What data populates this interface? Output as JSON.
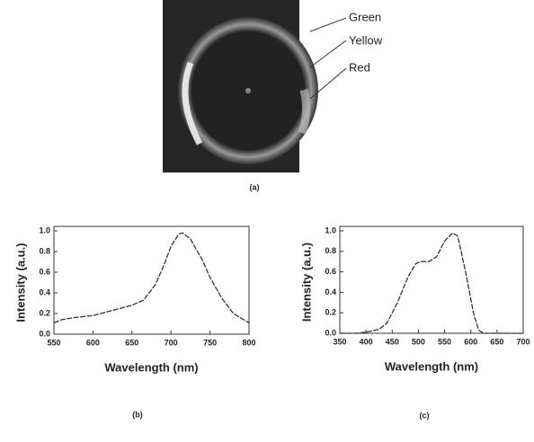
{
  "photo": {
    "labels": [
      "Green",
      "Yellow",
      "Red"
    ],
    "caption": "(a)"
  },
  "chart_data": [
    {
      "type": "line",
      "caption": "(b)",
      "x_label": "Wavelength (nm)",
      "y_label": "Intensity (a.u.)",
      "x": [
        550,
        560,
        575,
        600,
        625,
        650,
        665,
        680,
        690,
        700,
        710,
        715,
        725,
        740,
        750,
        765,
        780,
        800
      ],
      "series": [
        {
          "color": "#333333",
          "values": [
            0.11,
            0.14,
            0.16,
            0.18,
            0.23,
            0.28,
            0.33,
            0.48,
            0.65,
            0.85,
            0.97,
            0.98,
            0.92,
            0.72,
            0.55,
            0.35,
            0.2,
            0.11
          ]
        }
      ],
      "xlim": [
        550,
        800
      ],
      "xticks": [
        550,
        600,
        650,
        700,
        750,
        800
      ],
      "ylim": [
        0,
        1
      ],
      "yticks": [
        {
          "value": 0,
          "label": "0.0"
        },
        0.2,
        0.4,
        0.6,
        0.8,
        {
          "value": 1,
          "label": "1.0"
        }
      ]
    },
    {
      "type": "line",
      "caption": "(c)",
      "x_label": "Wavelength (nm)",
      "y_label": "Intensity (a.u.)",
      "x": [
        350,
        380,
        400,
        425,
        440,
        460,
        480,
        495,
        505,
        520,
        535,
        550,
        565,
        575,
        590,
        605,
        615,
        625,
        650,
        700
      ],
      "series": [
        {
          "color": "#333333",
          "values": [
            0,
            0,
            0.01,
            0.04,
            0.1,
            0.3,
            0.55,
            0.68,
            0.7,
            0.7,
            0.75,
            0.9,
            0.98,
            0.95,
            0.6,
            0.2,
            0.03,
            0,
            0,
            0
          ]
        }
      ],
      "xlim": [
        350,
        700
      ],
      "xticks": [
        350,
        400,
        450,
        500,
        550,
        600,
        650,
        700
      ],
      "ylim": [
        0,
        1
      ],
      "yticks": [
        {
          "value": 0,
          "label": "0.0"
        },
        0.2,
        0.4,
        0.6,
        0.8,
        {
          "value": 1,
          "label": "1.0"
        }
      ]
    }
  ]
}
